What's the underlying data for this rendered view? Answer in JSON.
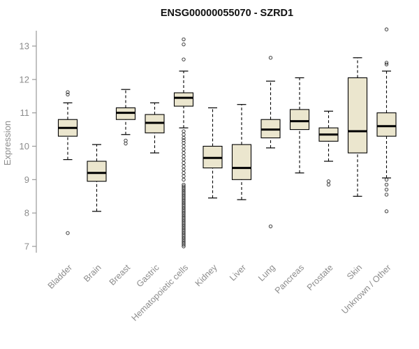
{
  "chart_data": {
    "type": "boxplot",
    "title": "ENSG00000055070 - SZRD1",
    "ylabel": "Expression",
    "xlabel": "",
    "ylim": [
      7,
      13
    ],
    "yticks": [
      7,
      8,
      9,
      10,
      11,
      12,
      13
    ],
    "grid": false,
    "legend": "none",
    "colors": {
      "box_fill": "#ebe6ce",
      "box_stroke": "#000000",
      "median": "#000000",
      "whisker": "#000000",
      "axis": "#9a9a9a",
      "tick_label": "#8c8c8c",
      "title": "#111111",
      "outlier": "#2b2b2b"
    },
    "categories": [
      "Bladder",
      "Brain",
      "Breast",
      "Gastric",
      "Hematopoietic cells",
      "Kidney",
      "Liver",
      "Lung",
      "Pancreas",
      "Prostate",
      "Skin",
      "Unknown / Other"
    ],
    "boxes": [
      {
        "category": "Bladder",
        "whislo": 9.6,
        "q1": 10.3,
        "med": 10.55,
        "q3": 10.8,
        "whishi": 11.3,
        "outliers": [
          11.62,
          11.55,
          7.4
        ]
      },
      {
        "category": "Brain",
        "whislo": 8.05,
        "q1": 8.95,
        "med": 9.2,
        "q3": 9.55,
        "whishi": 10.05,
        "outliers": []
      },
      {
        "category": "Breast",
        "whislo": 10.35,
        "q1": 10.8,
        "med": 11.0,
        "q3": 11.15,
        "whishi": 11.7,
        "outliers": [
          10.17,
          10.08
        ]
      },
      {
        "category": "Gastric",
        "whislo": 9.8,
        "q1": 10.4,
        "med": 10.7,
        "q3": 10.95,
        "whishi": 11.3,
        "outliers": []
      },
      {
        "category": "Hematopoietic cells",
        "whislo": 10.55,
        "q1": 11.2,
        "med": 11.45,
        "q3": 11.6,
        "whishi": 12.25,
        "outliers": [
          13.2,
          13.05,
          12.6,
          10.45,
          10.35,
          10.25,
          10.18,
          10.1,
          10.0,
          9.9,
          9.8,
          9.7,
          9.6,
          9.5,
          9.4,
          9.3,
          9.2,
          9.1,
          9.0,
          8.85,
          8.8,
          8.75,
          8.7,
          8.65,
          8.6,
          8.55,
          8.5,
          8.45,
          8.4,
          8.35,
          8.3,
          8.25,
          8.2,
          8.15,
          8.1,
          8.05,
          8.0,
          7.95,
          7.9,
          7.85,
          7.8,
          7.75,
          7.7,
          7.65,
          7.6,
          7.55,
          7.5,
          7.45,
          7.4,
          7.35,
          7.3,
          7.25,
          7.2,
          7.15,
          7.1,
          7.05,
          7.0
        ]
      },
      {
        "category": "Kidney",
        "whislo": 8.45,
        "q1": 9.35,
        "med": 9.65,
        "q3": 10.0,
        "whishi": 11.15,
        "outliers": []
      },
      {
        "category": "Liver",
        "whislo": 8.4,
        "q1": 9.0,
        "med": 9.35,
        "q3": 10.05,
        "whishi": 11.25,
        "outliers": []
      },
      {
        "category": "Lung",
        "whislo": 9.95,
        "q1": 10.25,
        "med": 10.5,
        "q3": 10.8,
        "whishi": 11.95,
        "outliers": [
          12.65,
          7.6
        ]
      },
      {
        "category": "Pancreas",
        "whislo": 9.2,
        "q1": 10.5,
        "med": 10.75,
        "q3": 11.1,
        "whishi": 12.05,
        "outliers": []
      },
      {
        "category": "Prostate",
        "whislo": 9.55,
        "q1": 10.15,
        "med": 10.35,
        "q3": 10.55,
        "whishi": 11.05,
        "outliers": [
          8.95,
          8.85
        ]
      },
      {
        "category": "Skin",
        "whislo": 8.5,
        "q1": 9.8,
        "med": 10.45,
        "q3": 12.05,
        "whishi": 12.65,
        "outliers": []
      },
      {
        "category": "Unknown / Other",
        "whislo": 9.05,
        "q1": 10.3,
        "med": 10.6,
        "q3": 11.0,
        "whishi": 12.25,
        "outliers": [
          13.5,
          12.5,
          12.45,
          9.0,
          8.85,
          8.7,
          8.55,
          8.05
        ]
      }
    ]
  }
}
